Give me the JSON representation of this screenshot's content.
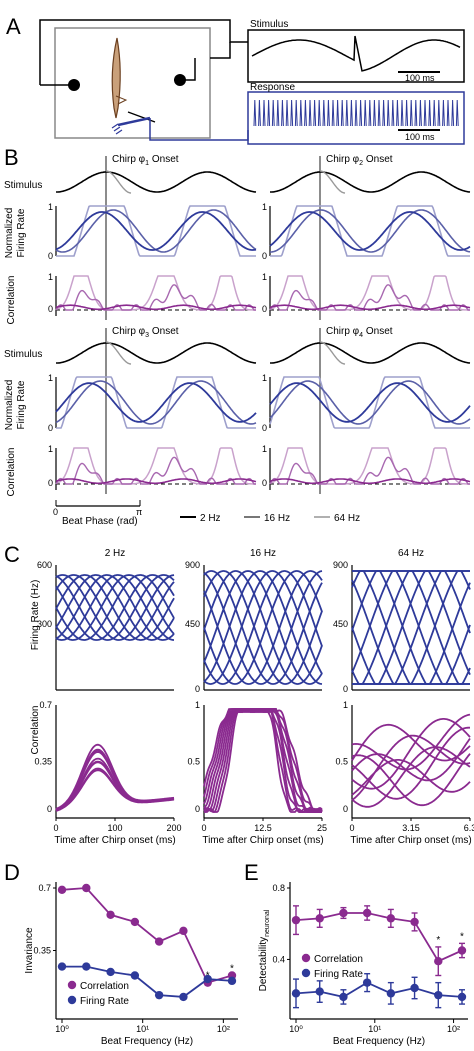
{
  "panel_letters": {
    "a": "A",
    "b": "B",
    "c": "C",
    "d": "D",
    "e": "E"
  },
  "colors": {
    "blue": "#2e3a9a",
    "mid_blue": "#5a60a8",
    "light_blue": "#9ea0cc",
    "purple": "#8a2a8f",
    "mid_purple": "#a868b0",
    "light_purple": "#c9a2cc",
    "black": "#000000",
    "gray": "#777777",
    "light_gray": "#b0b0b0"
  },
  "panel_a": {
    "stimulus_label": "Stimulus",
    "response_label": "Response",
    "scale_stimulus": "100 ms",
    "scale_response": "100 ms"
  },
  "panel_b": {
    "chirp1": "Chirp φ",
    "chirp_sub": [
      "1",
      "2",
      "3",
      "4"
    ],
    "onset": "Onset",
    "stimulus": "Stimulus",
    "norm_fr_1": "Normalized",
    "norm_fr_2": "Firing Rate",
    "correlation": "Correlation",
    "beat_phase": "Beat Phase (rad)",
    "tick_zero": "0",
    "tick_one": "1",
    "tick_pi": "π",
    "legend": [
      "2 Hz",
      "16 Hz",
      "64 Hz"
    ]
  },
  "panel_c": {
    "titles": [
      "2 Hz",
      "16 Hz",
      "64 Hz"
    ],
    "ylabel_top": "Firing Rate (Hz)",
    "ylabel_bottom": "Correlation",
    "xlabel": "Time after Chirp onset (ms)",
    "top_yticks": [
      [
        "600",
        "300"
      ],
      [
        "900",
        "450",
        "0"
      ],
      [
        "900",
        "450",
        "0"
      ]
    ],
    "bottom_yticks": [
      [
        "0.7",
        "0.35",
        "0"
      ],
      [
        "1",
        "0.5",
        "0"
      ],
      [
        "1",
        "0.5",
        "0"
      ]
    ],
    "xticks": [
      [
        "0",
        "100",
        "200"
      ],
      [
        "0",
        "12.5",
        "25"
      ],
      [
        "0",
        "3.15",
        "6.3"
      ]
    ]
  },
  "chart_data": [
    {
      "type": "line",
      "title": "",
      "xlabel": "Beat Frequency (Hz)",
      "ylabel": "Invariance",
      "x_scale": "log",
      "xlim": [
        1,
        128
      ],
      "ylim": [
        0,
        0.7
      ],
      "yticks": [
        "0.7",
        "0.35"
      ],
      "xticks": [
        "10⁰",
        "10¹",
        "10²"
      ],
      "grid": false,
      "legend": "bottom-left",
      "x": [
        1,
        2,
        4,
        8,
        16,
        32,
        64,
        128
      ],
      "series": [
        {
          "name": "Correlation",
          "color": "#8a2a8f",
          "values": [
            0.69,
            0.7,
            0.55,
            0.51,
            0.4,
            0.46,
            0.17,
            0.21
          ]
        },
        {
          "name": "Firing Rate",
          "color": "#2e3a9a",
          "values": [
            0.26,
            0.26,
            0.23,
            0.21,
            0.1,
            0.09,
            0.19,
            0.18
          ]
        }
      ],
      "significance": [
        64,
        128
      ],
      "star": "*"
    },
    {
      "type": "line",
      "title": "",
      "xlabel": "Beat Frequency (Hz)",
      "ylabel_main": "Detectability",
      "ylabel_sub": "neuronal",
      "x_scale": "log",
      "xlim": [
        1,
        128
      ],
      "ylim": [
        0.1,
        0.8
      ],
      "yticks": [
        "0.8",
        "0.4"
      ],
      "xticks": [
        "10⁰",
        "10¹",
        "10²"
      ],
      "grid": false,
      "legend": "center-left",
      "x": [
        1,
        2,
        4,
        8,
        16,
        32,
        64,
        128
      ],
      "series": [
        {
          "name": "Correlation",
          "color": "#8a2a8f",
          "values": [
            0.62,
            0.63,
            0.66,
            0.66,
            0.63,
            0.61,
            0.39,
            0.45
          ],
          "errors": [
            0.08,
            0.05,
            0.03,
            0.04,
            0.05,
            0.05,
            0.08,
            0.04
          ]
        },
        {
          "name": "Firing Rate",
          "color": "#2e3a9a",
          "values": [
            0.21,
            0.22,
            0.19,
            0.27,
            0.21,
            0.24,
            0.2,
            0.19
          ],
          "errors": [
            0.08,
            0.06,
            0.04,
            0.05,
            0.06,
            0.06,
            0.07,
            0.04
          ]
        }
      ],
      "significance": [
        64,
        128
      ],
      "star": "*"
    }
  ]
}
